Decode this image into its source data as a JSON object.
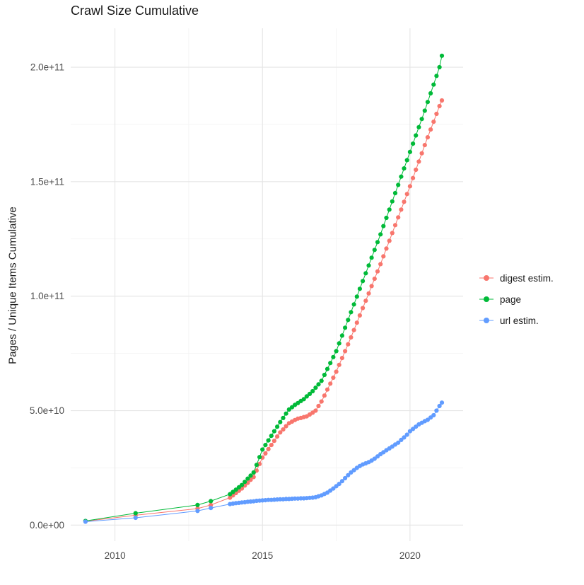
{
  "figure": {
    "title": "Crawl Size Cumulative",
    "ylabel": "Pages / Unique Items Cumulative"
  },
  "chart_data": {
    "type": "scatter",
    "title": "Crawl Size Cumulative",
    "xlabel": "",
    "ylabel": "Pages / Unique Items Cumulative",
    "value_unit": "1e9 (values below are billions of pages / items)",
    "grid": true,
    "legend_position": "right",
    "xlim": [
      2008.5,
      2021.8
    ],
    "ylim_e9": [
      -7,
      217
    ],
    "x_ticks": [
      {
        "value": 2010,
        "label": "2010"
      },
      {
        "value": 2015,
        "label": "2015"
      },
      {
        "value": 2020,
        "label": "2020"
      }
    ],
    "y_ticks": [
      {
        "value_e9": 0,
        "label": "0.0e+00"
      },
      {
        "value_e9": 50,
        "label": "5.0e+10"
      },
      {
        "value_e9": 100,
        "label": "1.0e+11"
      },
      {
        "value_e9": 150,
        "label": "1.5e+11"
      },
      {
        "value_e9": 200,
        "label": "2.0e+11"
      }
    ],
    "series": [
      {
        "name": "digest estim.",
        "color": "#F8766D",
        "points": [
          [
            2009.0,
            1.7
          ],
          [
            2010.7,
            4.3
          ],
          [
            2012.8,
            7.2
          ],
          [
            2013.25,
            8.8
          ],
          [
            2013.9,
            12
          ],
          [
            2014.0,
            13
          ],
          [
            2014.1,
            14
          ],
          [
            2014.2,
            15
          ],
          [
            2014.3,
            16
          ],
          [
            2014.4,
            17.3
          ],
          [
            2014.5,
            18.5
          ],
          [
            2014.6,
            19.8
          ],
          [
            2014.7,
            21
          ],
          [
            2014.8,
            23.8
          ],
          [
            2014.9,
            26.7
          ],
          [
            2015.0,
            29.5
          ],
          [
            2015.1,
            31.3
          ],
          [
            2015.2,
            33.2
          ],
          [
            2015.3,
            35
          ],
          [
            2015.4,
            36.8
          ],
          [
            2015.5,
            38.7
          ],
          [
            2015.6,
            40.5
          ],
          [
            2015.7,
            41.8
          ],
          [
            2015.8,
            43.2
          ],
          [
            2015.9,
            44.5
          ],
          [
            2016.0,
            45.2
          ],
          [
            2016.1,
            45.9
          ],
          [
            2016.2,
            46.5
          ],
          [
            2016.3,
            46.8
          ],
          [
            2016.4,
            47.2
          ],
          [
            2016.5,
            47.5
          ],
          [
            2016.6,
            48.3
          ],
          [
            2016.7,
            49.1
          ],
          [
            2016.8,
            50
          ],
          [
            2016.9,
            52
          ],
          [
            2017.0,
            54
          ],
          [
            2017.1,
            56.6
          ],
          [
            2017.2,
            59.2
          ],
          [
            2017.3,
            61.8
          ],
          [
            2017.4,
            64.4
          ],
          [
            2017.5,
            67
          ],
          [
            2017.6,
            70
          ],
          [
            2017.7,
            73
          ],
          [
            2017.8,
            76
          ],
          [
            2017.9,
            79
          ],
          [
            2018.0,
            82
          ],
          [
            2018.1,
            85.2
          ],
          [
            2018.2,
            88.4
          ],
          [
            2018.3,
            91.6
          ],
          [
            2018.4,
            94.8
          ],
          [
            2018.5,
            98
          ],
          [
            2018.6,
            101.2
          ],
          [
            2018.7,
            104.4
          ],
          [
            2018.8,
            107.6
          ],
          [
            2018.9,
            110.8
          ],
          [
            2019.0,
            114
          ],
          [
            2019.1,
            117.4
          ],
          [
            2019.2,
            120.8
          ],
          [
            2019.3,
            124.2
          ],
          [
            2019.4,
            127.6
          ],
          [
            2019.5,
            131
          ],
          [
            2019.6,
            134.4
          ],
          [
            2019.7,
            137.8
          ],
          [
            2019.8,
            141.2
          ],
          [
            2019.9,
            144.6
          ],
          [
            2020.0,
            148
          ],
          [
            2020.1,
            151.6
          ],
          [
            2020.2,
            155.2
          ],
          [
            2020.3,
            158.8
          ],
          [
            2020.4,
            162.4
          ],
          [
            2020.5,
            166
          ],
          [
            2020.6,
            169.4
          ],
          [
            2020.7,
            172.8
          ],
          [
            2020.8,
            176.2
          ],
          [
            2020.9,
            179.6
          ],
          [
            2021.0,
            183
          ],
          [
            2021.08,
            185.5
          ]
        ]
      },
      {
        "name": "page",
        "color": "#00BA38",
        "points": [
          [
            2009.0,
            1.8
          ],
          [
            2010.7,
            5.2
          ],
          [
            2012.8,
            8.8
          ],
          [
            2013.25,
            10.5
          ],
          [
            2013.9,
            13.5
          ],
          [
            2014.0,
            14.5
          ],
          [
            2014.1,
            15.5
          ],
          [
            2014.2,
            16.5
          ],
          [
            2014.3,
            17.5
          ],
          [
            2014.4,
            18.9
          ],
          [
            2014.5,
            20.3
          ],
          [
            2014.6,
            21.6
          ],
          [
            2014.7,
            23
          ],
          [
            2014.8,
            26.3
          ],
          [
            2014.9,
            29.7
          ],
          [
            2015.0,
            33
          ],
          [
            2015.1,
            35
          ],
          [
            2015.2,
            37
          ],
          [
            2015.3,
            39
          ],
          [
            2015.4,
            41
          ],
          [
            2015.5,
            43
          ],
          [
            2015.6,
            45
          ],
          [
            2015.7,
            46.8
          ],
          [
            2015.8,
            48.7
          ],
          [
            2015.9,
            50.5
          ],
          [
            2016.0,
            51.5
          ],
          [
            2016.1,
            52.5
          ],
          [
            2016.2,
            53.3
          ],
          [
            2016.3,
            54.2
          ],
          [
            2016.4,
            55
          ],
          [
            2016.5,
            56.2
          ],
          [
            2016.6,
            57.3
          ],
          [
            2016.7,
            58.5
          ],
          [
            2016.8,
            60
          ],
          [
            2016.9,
            61.5
          ],
          [
            2017.0,
            63
          ],
          [
            2017.1,
            65.6
          ],
          [
            2017.2,
            68.2
          ],
          [
            2017.3,
            70.8
          ],
          [
            2017.4,
            73.4
          ],
          [
            2017.5,
            76
          ],
          [
            2017.6,
            79.4
          ],
          [
            2017.7,
            82.8
          ],
          [
            2017.8,
            86.2
          ],
          [
            2017.9,
            89.6
          ],
          [
            2018.0,
            93
          ],
          [
            2018.1,
            96.4
          ],
          [
            2018.2,
            99.8
          ],
          [
            2018.3,
            103.2
          ],
          [
            2018.4,
            106.6
          ],
          [
            2018.5,
            110
          ],
          [
            2018.6,
            113.4
          ],
          [
            2018.7,
            116.8
          ],
          [
            2018.8,
            120.2
          ],
          [
            2018.9,
            123.6
          ],
          [
            2019.0,
            127
          ],
          [
            2019.1,
            130.6
          ],
          [
            2019.2,
            134.2
          ],
          [
            2019.3,
            137.8
          ],
          [
            2019.4,
            141.4
          ],
          [
            2019.5,
            145
          ],
          [
            2019.6,
            148.6
          ],
          [
            2019.7,
            152.2
          ],
          [
            2019.8,
            155.8
          ],
          [
            2019.9,
            159.4
          ],
          [
            2020.0,
            163
          ],
          [
            2020.1,
            166.6
          ],
          [
            2020.2,
            170.2
          ],
          [
            2020.3,
            173.8
          ],
          [
            2020.4,
            177.4
          ],
          [
            2020.5,
            181
          ],
          [
            2020.6,
            184.8
          ],
          [
            2020.7,
            188.6
          ],
          [
            2020.8,
            192.4
          ],
          [
            2020.9,
            196.2
          ],
          [
            2021.0,
            200
          ],
          [
            2021.08,
            205
          ]
        ]
      },
      {
        "name": "url estim.",
        "color": "#619CFF",
        "points": [
          [
            2009.0,
            1.5
          ],
          [
            2010.7,
            3.2
          ],
          [
            2012.8,
            6.2
          ],
          [
            2013.25,
            7.5
          ],
          [
            2013.9,
            9.2
          ],
          [
            2014.0,
            9.4
          ],
          [
            2014.1,
            9.6
          ],
          [
            2014.2,
            9.7
          ],
          [
            2014.3,
            9.9
          ],
          [
            2014.4,
            10.0
          ],
          [
            2014.5,
            10.2
          ],
          [
            2014.6,
            10.3
          ],
          [
            2014.7,
            10.4
          ],
          [
            2014.8,
            10.6
          ],
          [
            2014.9,
            10.7
          ],
          [
            2015.0,
            10.8
          ],
          [
            2015.1,
            10.9
          ],
          [
            2015.2,
            11.0
          ],
          [
            2015.3,
            11.0
          ],
          [
            2015.4,
            11.1
          ],
          [
            2015.5,
            11.2
          ],
          [
            2015.6,
            11.3
          ],
          [
            2015.7,
            11.3
          ],
          [
            2015.8,
            11.4
          ],
          [
            2015.9,
            11.4
          ],
          [
            2016.0,
            11.5
          ],
          [
            2016.1,
            11.6
          ],
          [
            2016.2,
            11.6
          ],
          [
            2016.3,
            11.7
          ],
          [
            2016.4,
            11.7
          ],
          [
            2016.5,
            11.8
          ],
          [
            2016.6,
            11.9
          ],
          [
            2016.7,
            12.0
          ],
          [
            2016.8,
            12.2
          ],
          [
            2016.9,
            12.6
          ],
          [
            2017.0,
            13
          ],
          [
            2017.1,
            13.6
          ],
          [
            2017.2,
            14.2
          ],
          [
            2017.3,
            15.1
          ],
          [
            2017.4,
            16
          ],
          [
            2017.5,
            17
          ],
          [
            2017.6,
            18
          ],
          [
            2017.7,
            19.2
          ],
          [
            2017.8,
            20.5
          ],
          [
            2017.9,
            21.8
          ],
          [
            2018.0,
            23
          ],
          [
            2018.1,
            24
          ],
          [
            2018.2,
            25
          ],
          [
            2018.3,
            25.8
          ],
          [
            2018.4,
            26.5
          ],
          [
            2018.5,
            27
          ],
          [
            2018.6,
            27.5
          ],
          [
            2018.7,
            28.2
          ],
          [
            2018.8,
            29
          ],
          [
            2018.9,
            30
          ],
          [
            2019.0,
            31
          ],
          [
            2019.1,
            31.8
          ],
          [
            2019.2,
            32.7
          ],
          [
            2019.3,
            33.5
          ],
          [
            2019.4,
            34.3
          ],
          [
            2019.5,
            35.2
          ],
          [
            2019.6,
            36
          ],
          [
            2019.7,
            37.2
          ],
          [
            2019.8,
            38.3
          ],
          [
            2019.9,
            39.5
          ],
          [
            2020.0,
            41
          ],
          [
            2020.1,
            42
          ],
          [
            2020.2,
            43
          ],
          [
            2020.3,
            44
          ],
          [
            2020.4,
            44.7
          ],
          [
            2020.5,
            45.4
          ],
          [
            2020.6,
            46
          ],
          [
            2020.7,
            47
          ],
          [
            2020.8,
            48
          ],
          [
            2020.9,
            50
          ],
          [
            2021.0,
            52
          ],
          [
            2021.08,
            53.5
          ]
        ]
      }
    ]
  }
}
